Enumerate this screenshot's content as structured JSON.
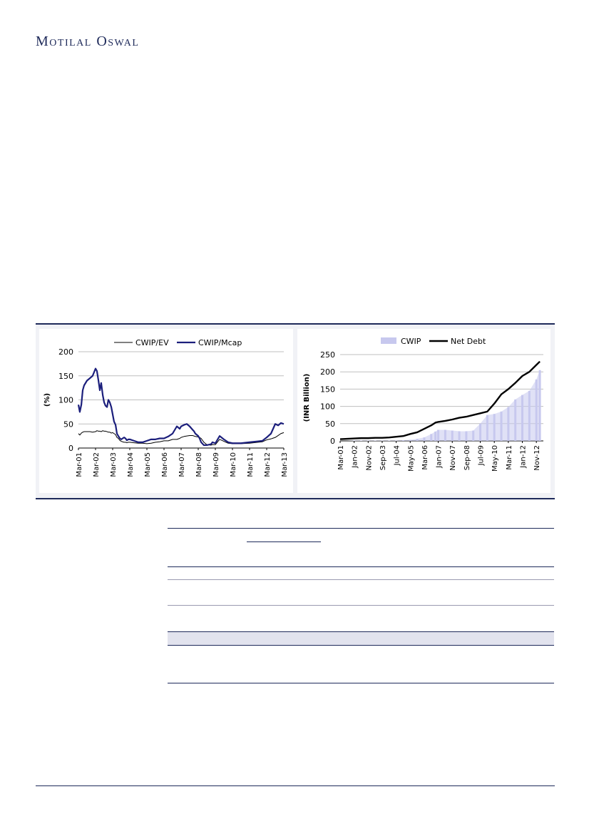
{
  "header": {
    "brand": "Motilal Oswal"
  },
  "chart_data": [
    {
      "type": "line",
      "ylabel": "(%)",
      "ylim": [
        0,
        200
      ],
      "yticks": [
        "0",
        "50",
        "100",
        "150",
        "200"
      ],
      "categories": [
        "Mar-01",
        "Mar-02",
        "Mar-03",
        "Mar-04",
        "Mar-05",
        "Mar-06",
        "Mar-07",
        "Mar-08",
        "Mar-09",
        "Mar-10",
        "Mar-11",
        "Mar-12",
        "Mar-13"
      ],
      "legend_position": "top",
      "x": [
        0,
        0.08,
        0.17,
        0.25,
        0.33,
        0.5,
        0.67,
        0.83,
        1,
        1.08,
        1.17,
        1.25,
        1.33,
        1.42,
        1.5,
        1.58,
        1.67,
        1.75,
        1.83,
        1.92,
        2,
        2.08,
        2.17,
        2.25,
        2.33,
        2.42,
        2.5,
        2.58,
        2.67,
        2.75,
        2.83,
        2.92,
        3,
        3.25,
        3.5,
        3.75,
        4,
        4.25,
        4.5,
        4.75,
        5,
        5.25,
        5.5,
        5.75,
        5.92,
        6,
        6.17,
        6.33,
        6.5,
        6.67,
        6.75,
        6.83,
        7,
        7.08,
        7.17,
        7.33,
        7.5,
        7.75,
        7.83,
        8,
        8.25,
        8.5,
        8.75,
        9,
        9.5,
        10,
        10.5,
        10.75,
        11,
        11.25,
        11.5,
        11.67,
        11.83,
        12
      ],
      "series": [
        {
          "name": "CWIP/EV",
          "color": "#000000",
          "values": [
            30,
            27,
            31,
            33,
            34,
            34,
            34,
            33,
            34,
            36,
            35,
            35,
            34,
            36,
            35,
            35,
            34,
            33,
            33,
            31,
            32,
            30,
            28,
            22,
            20,
            16,
            14,
            13,
            12,
            12,
            11,
            12,
            12,
            11,
            10,
            10,
            9,
            10,
            12,
            13,
            15,
            15,
            18,
            18,
            20,
            22,
            24,
            25,
            26,
            26,
            25,
            24,
            23,
            22,
            20,
            12,
            7,
            6,
            7,
            7,
            18,
            14,
            10,
            9,
            9,
            10,
            12,
            13,
            17,
            19,
            22,
            26,
            30,
            32
          ]
        },
        {
          "name": "CWIP/Mcap",
          "color": "#1c1f7c",
          "values": [
            90,
            75,
            90,
            120,
            130,
            140,
            145,
            150,
            165,
            160,
            140,
            120,
            135,
            110,
            95,
            88,
            85,
            100,
            95,
            85,
            70,
            55,
            48,
            30,
            25,
            20,
            18,
            20,
            22,
            20,
            16,
            18,
            18,
            15,
            12,
            12,
            15,
            18,
            18,
            20,
            20,
            24,
            30,
            45,
            40,
            45,
            48,
            50,
            45,
            38,
            35,
            30,
            25,
            20,
            12,
            6,
            6,
            8,
            12,
            10,
            25,
            18,
            12,
            10,
            10,
            12,
            14,
            15,
            22,
            30,
            50,
            47,
            52,
            50
          ]
        }
      ]
    },
    {
      "type": "area",
      "ylabel": "(INR Billion)",
      "ylim": [
        0,
        250
      ],
      "yticks": [
        "0",
        "50",
        "100",
        "150",
        "200",
        "250"
      ],
      "categories": [
        "Mar-01",
        "Jan-02",
        "Nov-02",
        "Sep-03",
        "Jul-04",
        "May-05",
        "Mar-06",
        "Jan-07",
        "Nov-07",
        "Sep-08",
        "Jul-09",
        "May-10",
        "Mar-11",
        "Jan-12",
        "Nov-12"
      ],
      "legend_position": "top",
      "x": [
        0,
        0.5,
        1,
        1.5,
        2,
        2.5,
        3,
        3.5,
        4,
        4.5,
        5,
        5.5,
        6,
        6.5,
        6.8,
        7,
        7.5,
        8,
        8.5,
        9,
        9.5,
        10,
        10.5,
        11,
        11.5,
        12,
        12.5,
        13,
        13.5,
        14,
        14.25
      ],
      "series": [
        {
          "name": "CWIP",
          "color": "#c7c8ee",
          "values": [
            0,
            0,
            1,
            1,
            1,
            1,
            1,
            1,
            1,
            2,
            3,
            6,
            10,
            20,
            27,
            32,
            32,
            30,
            28,
            28,
            30,
            50,
            75,
            78,
            85,
            98,
            120,
            133,
            145,
            178,
            205
          ]
        },
        {
          "name": "Net Debt",
          "color": "#000000",
          "values": [
            5,
            6,
            7,
            8,
            8,
            9,
            9,
            10,
            12,
            14,
            20,
            25,
            35,
            45,
            53,
            55,
            58,
            62,
            67,
            70,
            75,
            80,
            85,
            108,
            135,
            150,
            168,
            188,
            200,
            220,
            230
          ]
        }
      ]
    }
  ]
}
